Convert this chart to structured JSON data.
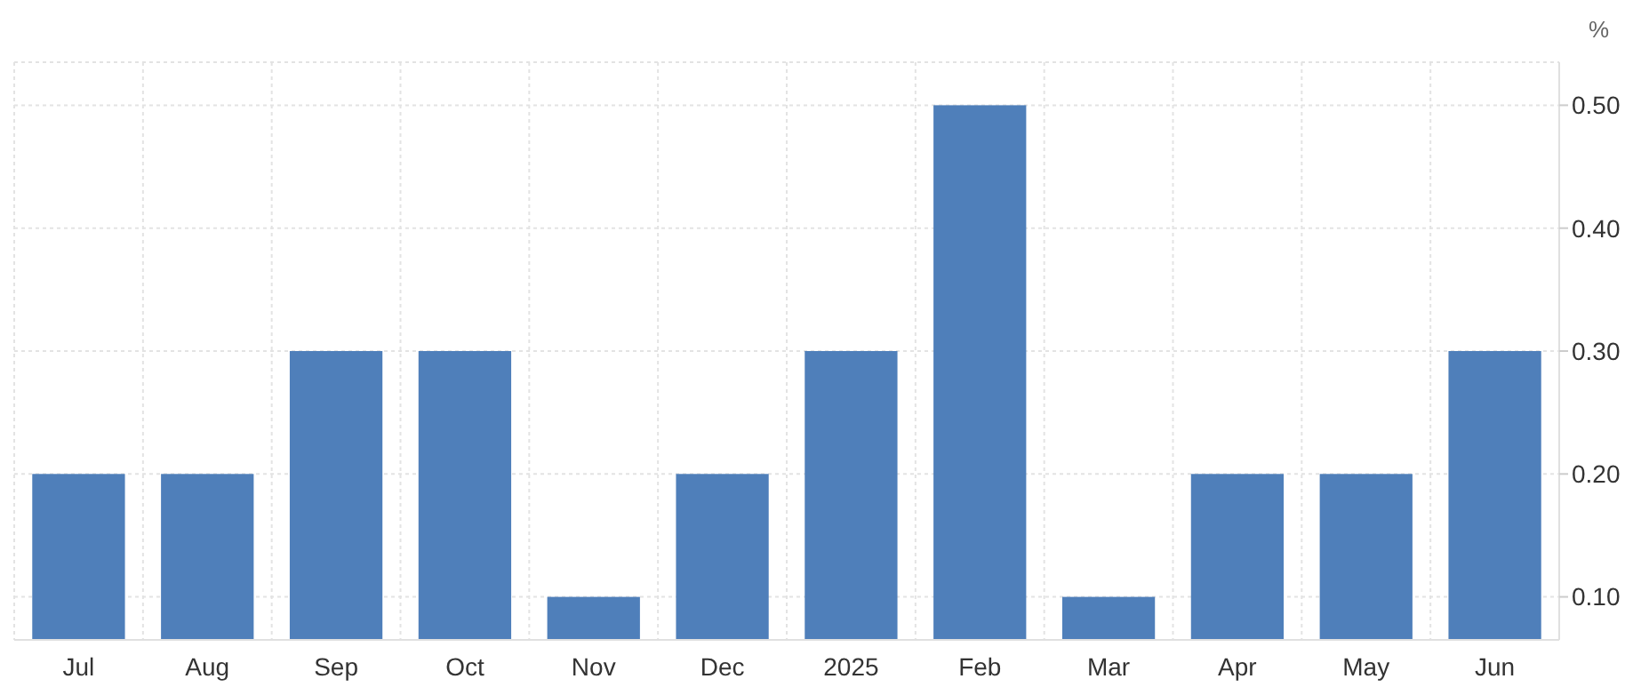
{
  "chart_data": {
    "type": "bar",
    "ylabel": "%",
    "categories": [
      "Jul",
      "Aug",
      "Sep",
      "Oct",
      "Nov",
      "Dec",
      "2025",
      "Feb",
      "Mar",
      "Apr",
      "May",
      "Jun"
    ],
    "values": [
      0.2,
      0.2,
      0.3,
      0.3,
      0.1,
      0.2,
      0.3,
      0.5,
      0.1,
      0.2,
      0.2,
      0.3
    ],
    "color": "#4f7fba",
    "ylim": [
      0.065,
      0.535
    ],
    "yticks": [
      {
        "value": 0.1,
        "label": "0.10"
      },
      {
        "value": 0.2,
        "label": "0.20"
      },
      {
        "value": 0.3,
        "label": "0.30"
      },
      {
        "value": 0.4,
        "label": "0.40"
      },
      {
        "value": 0.5,
        "label": "0.50"
      }
    ],
    "grid": true
  }
}
